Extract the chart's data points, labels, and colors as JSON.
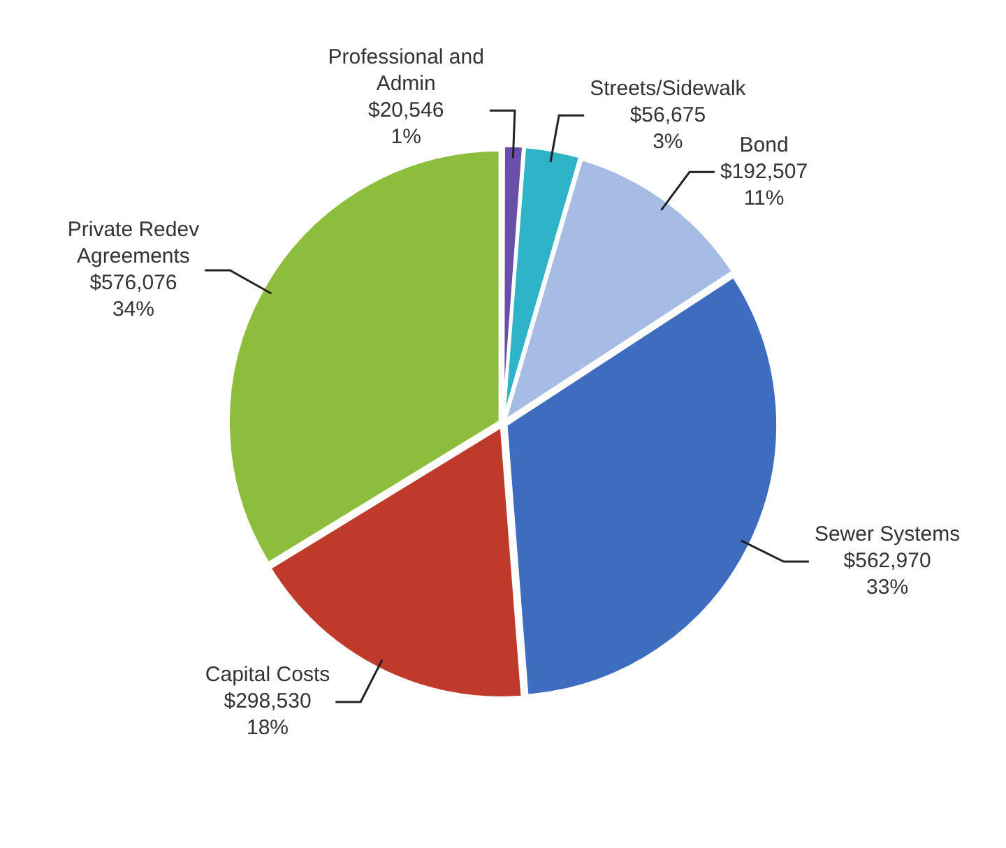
{
  "chart_data": {
    "type": "pie",
    "categories": [
      "Professional and Admin",
      "Streets/Sidewalk",
      "Bond",
      "Sewer Systems",
      "Capital Costs",
      "Private Redev Agreements"
    ],
    "values": [
      20546,
      56675,
      192507,
      562970,
      298530,
      576076
    ],
    "value_labels": [
      "$20,546\n1%",
      "$56,675\n3%",
      "$192,507\n11%",
      "$562,970\n33%",
      "$298,530\n18%",
      "$576,076\n34%"
    ],
    "colors": [
      "#6a4fa8",
      "#2fb3c8",
      "#a7bce4",
      "#3e6dbf",
      "#c03a2b",
      "#8dbd3c"
    ],
    "legend": false
  }
}
